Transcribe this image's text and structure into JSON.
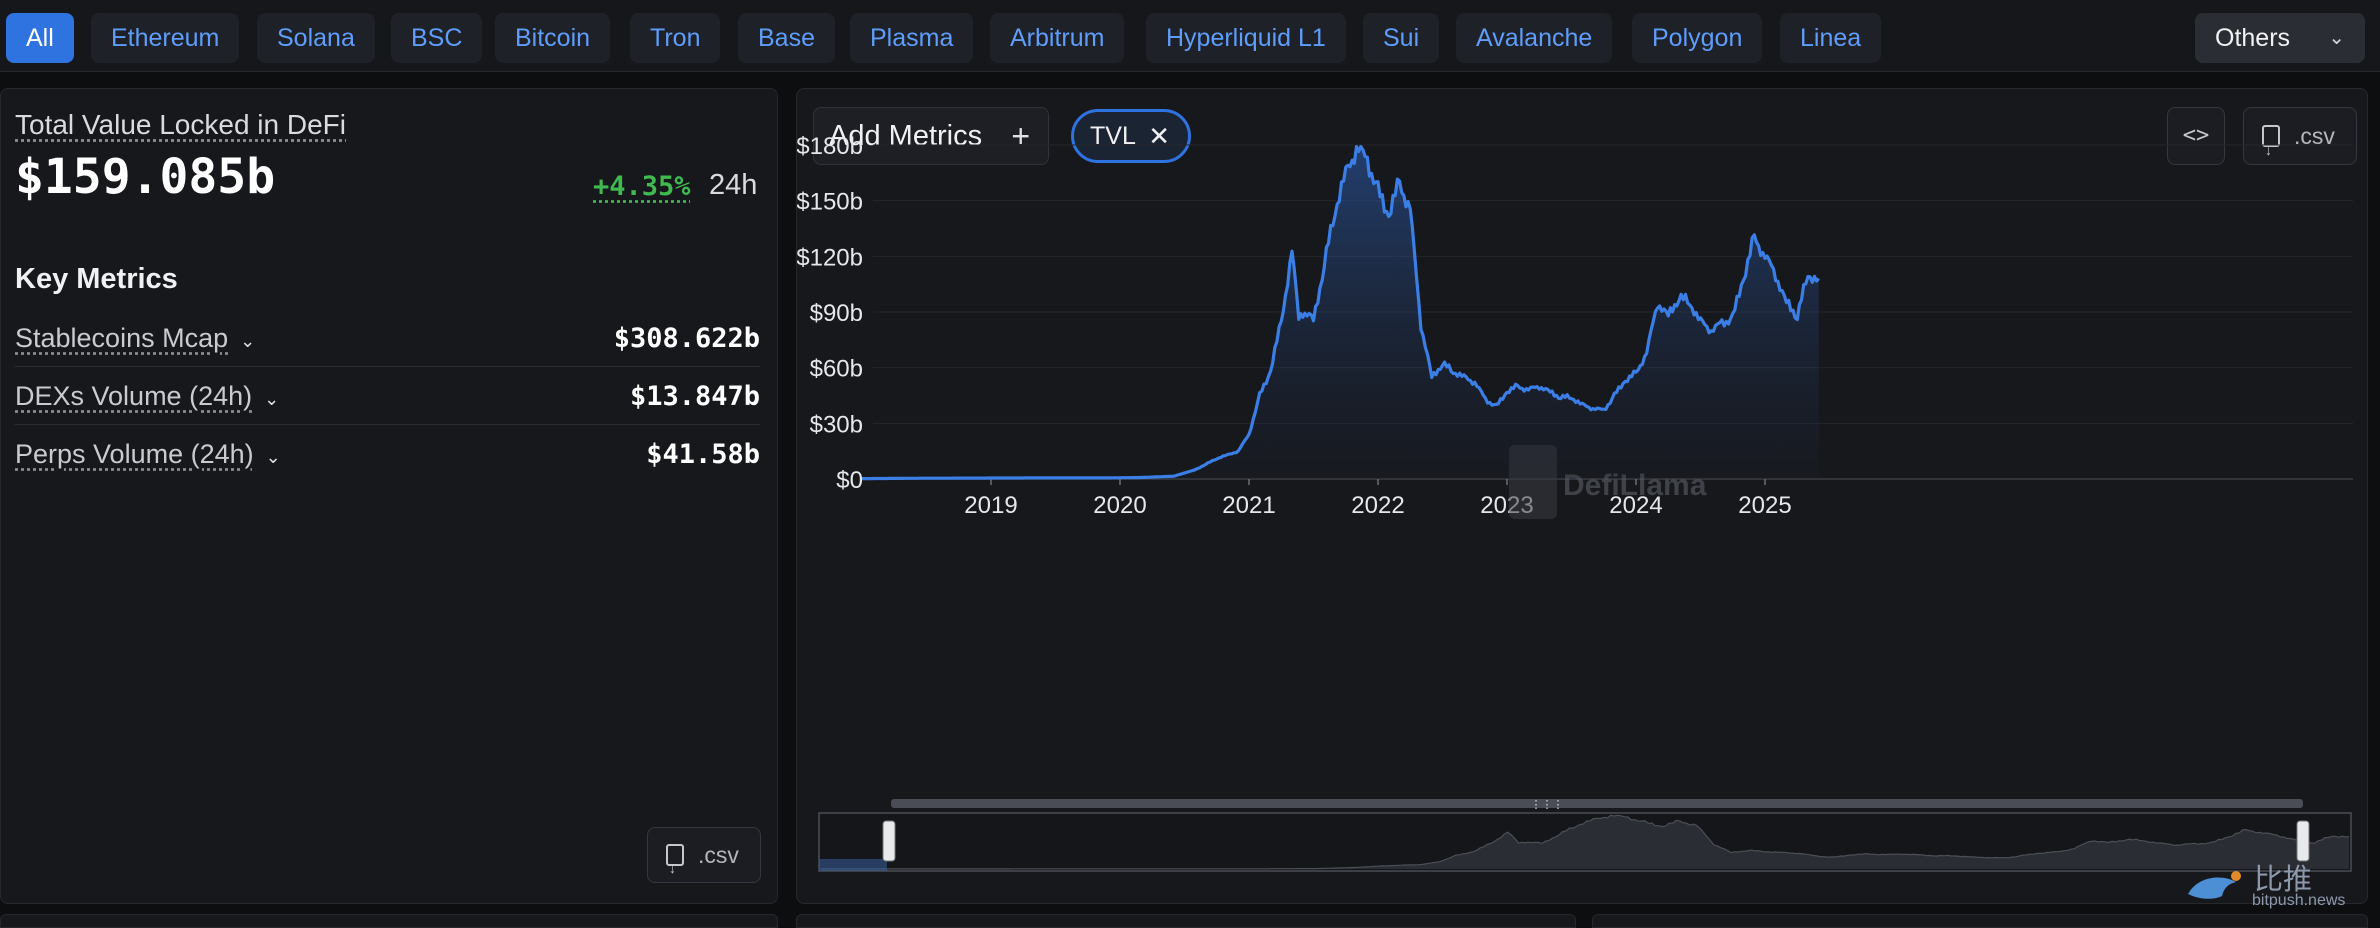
{
  "tabs": [
    {
      "label": "All",
      "active": true
    },
    {
      "label": "Ethereum"
    },
    {
      "label": "Solana"
    },
    {
      "label": "BSC"
    },
    {
      "label": "Bitcoin"
    },
    {
      "label": "Tron"
    },
    {
      "label": "Base"
    },
    {
      "label": "Plasma"
    },
    {
      "label": "Arbitrum"
    },
    {
      "label": "Hyperliquid L1"
    },
    {
      "label": "Sui"
    },
    {
      "label": "Avalanche"
    },
    {
      "label": "Polygon"
    },
    {
      "label": "Linea"
    }
  ],
  "others_label": "Others",
  "summary": {
    "tvl_label": "Total Value Locked in DeFi",
    "tvl_value": "$159.085b",
    "change": "+4.35%",
    "change_period": "24h",
    "key_metrics_title": "Key Metrics",
    "metrics": [
      {
        "name": "Stablecoins Mcap",
        "value": "$308.622b"
      },
      {
        "name": "DEXs Volume (24h)",
        "value": "$13.847b"
      },
      {
        "name": "Perps Volume (24h)",
        "value": "$41.58b"
      }
    ],
    "csv_label": ".csv"
  },
  "toolbar": {
    "add_metrics_label": "Add Metrics",
    "chip_label": "TVL",
    "embed_label": "<>",
    "csv_label": ".csv"
  },
  "watermark": "DefiLlama",
  "colors": {
    "accent": "#2f73e0",
    "line": "#3a7ee6",
    "positive": "#3fb950",
    "background": "#0d0e10",
    "panel": "#17181c"
  },
  "chart_data": {
    "type": "area",
    "title": "",
    "xlabel": "",
    "ylabel": "",
    "x_ticks": [
      "2019",
      "2020",
      "2021",
      "2022",
      "2023",
      "2024",
      "2025"
    ],
    "y_ticks": [
      "$0",
      "$30b",
      "$60b",
      "$90b",
      "$120b",
      "$150b",
      "$180b"
    ],
    "ylim": [
      0,
      180
    ],
    "y_unit": "billion USD",
    "grid": true,
    "legend": "none",
    "series": [
      {
        "name": "TVL",
        "points": [
          [
            "2018-01",
            0.2
          ],
          [
            "2018-06",
            0.4
          ],
          [
            "2018-12",
            0.5
          ],
          [
            "2019-06",
            0.6
          ],
          [
            "2019-12",
            0.6
          ],
          [
            "2020-03",
            0.8
          ],
          [
            "2020-06",
            1.5
          ],
          [
            "2020-08",
            5
          ],
          [
            "2020-09",
            8
          ],
          [
            "2020-10",
            11
          ],
          [
            "2020-11",
            13
          ],
          [
            "2020-12",
            15
          ],
          [
            "2021-01",
            24
          ],
          [
            "2021-02",
            45
          ],
          [
            "2021-03",
            58
          ],
          [
            "2021-04",
            85
          ],
          [
            "2021-05",
            122
          ],
          [
            "2021-05-20",
            88
          ],
          [
            "2021-06",
            90
          ],
          [
            "2021-07",
            86
          ],
          [
            "2021-08",
            115
          ],
          [
            "2021-09",
            145
          ],
          [
            "2021-10",
            165
          ],
          [
            "2021-11",
            178
          ],
          [
            "2021-12",
            172
          ],
          [
            "2022-01",
            155
          ],
          [
            "2022-02",
            142
          ],
          [
            "2022-03",
            160
          ],
          [
            "2022-04",
            145
          ],
          [
            "2022-05",
            83
          ],
          [
            "2022-06",
            55
          ],
          [
            "2022-07",
            62
          ],
          [
            "2022-08",
            58
          ],
          [
            "2022-09",
            55
          ],
          [
            "2022-10",
            52
          ],
          [
            "2022-11",
            43
          ],
          [
            "2022-12",
            39
          ],
          [
            "2023-01",
            47
          ],
          [
            "2023-02",
            50
          ],
          [
            "2023-03",
            48
          ],
          [
            "2023-04",
            50
          ],
          [
            "2023-05",
            47
          ],
          [
            "2023-06",
            44
          ],
          [
            "2023-07",
            44
          ],
          [
            "2023-08",
            40
          ],
          [
            "2023-09",
            38
          ],
          [
            "2023-10",
            37
          ],
          [
            "2023-11",
            45
          ],
          [
            "2023-12",
            53
          ],
          [
            "2024-01",
            57
          ],
          [
            "2024-02",
            68
          ],
          [
            "2024-03",
            95
          ],
          [
            "2024-04",
            88
          ],
          [
            "2024-05",
            98
          ],
          [
            "2024-06",
            95
          ],
          [
            "2024-07",
            85
          ],
          [
            "2024-08",
            80
          ],
          [
            "2024-09",
            84
          ],
          [
            "2024-10",
            87
          ],
          [
            "2024-11",
            108
          ],
          [
            "2024-12",
            130
          ],
          [
            "2025-01",
            120
          ],
          [
            "2025-02",
            110
          ],
          [
            "2025-03",
            95
          ],
          [
            "2025-04",
            88
          ],
          [
            "2025-05",
            110
          ],
          [
            "2025-06",
            108
          ]
        ]
      }
    ]
  }
}
